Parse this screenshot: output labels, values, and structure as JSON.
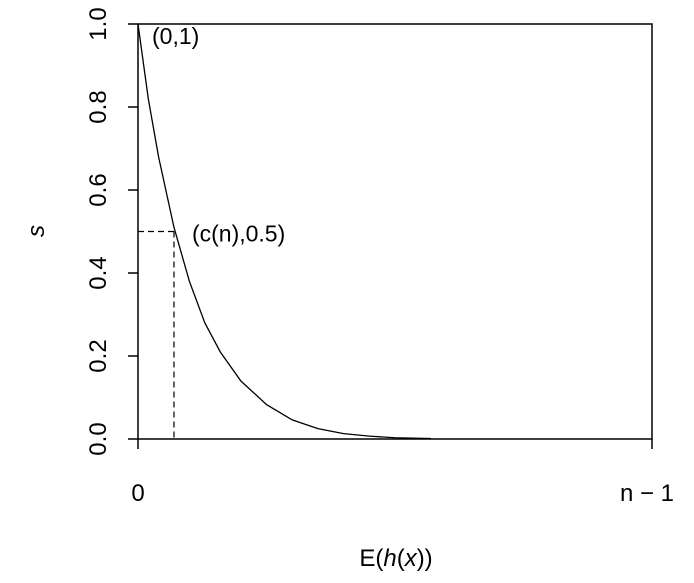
{
  "chart_data": {
    "type": "line",
    "xlabel": {
      "prefix": "E(",
      "italic": "h",
      "middle": "(",
      "italic2": "x",
      "suffix": "))"
    },
    "ylabel": "s",
    "xlim": [
      0,
      1
    ],
    "ylim": [
      0,
      1
    ],
    "x_ticks": [
      {
        "value": 0,
        "label": "0"
      },
      {
        "value": 1,
        "label": "n − 1"
      }
    ],
    "y_ticks": [
      {
        "value": 0.0,
        "label": "0.0"
      },
      {
        "value": 0.2,
        "label": "0.2"
      },
      {
        "value": 0.4,
        "label": "0.4"
      },
      {
        "value": 0.6,
        "label": "0.6"
      },
      {
        "value": 0.8,
        "label": "0.8"
      },
      {
        "value": 1.0,
        "label": "1.0"
      }
    ],
    "series": [
      {
        "x": [
          0,
          0.02,
          0.04,
          0.07,
          0.1,
          0.13,
          0.16,
          0.2,
          0.25,
          0.3,
          0.35,
          0.4,
          0.45,
          0.5,
          0.57
        ],
        "y": [
          1.0,
          0.82,
          0.68,
          0.51,
          0.38,
          0.28,
          0.21,
          0.14,
          0.083,
          0.046,
          0.025,
          0.013,
          0.007,
          0.003,
          0.001
        ]
      }
    ],
    "annotations": [
      {
        "label": "(0,1)",
        "x": 0,
        "y": 1
      },
      {
        "label": "(c(n),0.5)",
        "x": 0.07,
        "y": 0.5
      }
    ],
    "reference_point": {
      "x": 0.07,
      "y": 0.5
    },
    "grid": false,
    "box": true
  }
}
